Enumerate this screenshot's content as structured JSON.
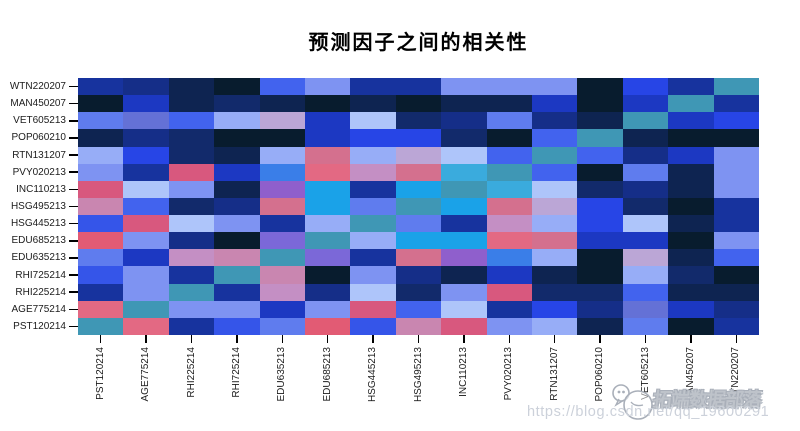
{
  "title": "预测因子之间的相关性",
  "chart_data": {
    "type": "heatmap",
    "title": "预测因子之间的相关性",
    "legend": "none",
    "grid": "off",
    "diagonal_color": "#3f97b5",
    "rows": [
      "WTN220207",
      "MAN450207",
      "VET605213",
      "POP060210",
      "RTN131207",
      "PVY020213",
      "INC110213",
      "HSG495213",
      "HSG445213",
      "EDU685213",
      "EDU635213",
      "RHI725214",
      "RHI225214",
      "AGE775214",
      "PST120214"
    ],
    "columns": [
      "PST120214",
      "AGE775214",
      "RHI225214",
      "RHI725214",
      "EDU635213",
      "EDU685213",
      "HSG445213",
      "HSG495213",
      "INC110213",
      "PVY020213",
      "RTN131207",
      "POP060210",
      "VET605213",
      "MAN450207",
      "WTN220207"
    ],
    "cell_colors": [
      [
        "#17339e",
        "#152e88",
        "#0e2451",
        "#081c2e",
        "#4263ee",
        "#7e93f2",
        "#17339e",
        "#17339e",
        "#7e93f2",
        "#7e93f2",
        "#7e93f2",
        "#081c2e",
        "#2745e6",
        "#17339e",
        "#3f97b5"
      ],
      [
        "#081c2e",
        "#1c38c2",
        "#0e2451",
        "#122a6b",
        "#0e2451",
        "#081c2e",
        "#0e2451",
        "#081c2e",
        "#0e2451",
        "#0e2451",
        "#1c38c2",
        "#081c2e",
        "#1c38c2",
        "#3f97b5",
        "#17339e"
      ],
      [
        "#5f7cee",
        "#6471d6",
        "#4263ee",
        "#97adf7",
        "#bba6d6",
        "#1c38c2",
        "#aec5fa",
        "#122a6b",
        "#152e88",
        "#5f7cee",
        "#152e88",
        "#0e2451",
        "#3f97b5",
        "#1c38c2",
        "#2745e6"
      ],
      [
        "#0e2451",
        "#152e88",
        "#122a6b",
        "#081c2e",
        "#081c2e",
        "#1c38c2",
        "#2745e6",
        "#2745e6",
        "#122a6b",
        "#081c2e",
        "#4263ee",
        "#3f97b5",
        "#0e2451",
        "#081c2e",
        "#081c2e"
      ],
      [
        "#97adf7",
        "#2745e6",
        "#122a6b",
        "#0e2451",
        "#97adf7",
        "#d4708e",
        "#97adf7",
        "#bba6d6",
        "#aec5fa",
        "#4263ee",
        "#3f97b5",
        "#4263ee",
        "#152e88",
        "#1c38c2",
        "#7e93f2"
      ],
      [
        "#7e93f2",
        "#17339e",
        "#d8587e",
        "#1c38c2",
        "#3a7ee8",
        "#e36983",
        "#c48fc4",
        "#d4708e",
        "#3aabdd",
        "#3f97b5",
        "#4263ee",
        "#081c2e",
        "#5f7cee",
        "#0e2451",
        "#7e93f2"
      ],
      [
        "#d8587e",
        "#aec5fa",
        "#7e93f2",
        "#0e2451",
        "#8f5fcc",
        "#1aa2e8",
        "#17339e",
        "#1aa2e8",
        "#3f97b5",
        "#3aabdd",
        "#aec5fa",
        "#122a6b",
        "#152e88",
        "#0e2451",
        "#7e93f2"
      ],
      [
        "#c986b0",
        "#4263ee",
        "#122a6b",
        "#152e88",
        "#d4708e",
        "#1aa2e8",
        "#5f7cee",
        "#3f97b5",
        "#1aa2e8",
        "#d4708e",
        "#bba6d6",
        "#2745e6",
        "#122a6b",
        "#081c2e",
        "#17339e"
      ],
      [
        "#3555e9",
        "#d8587e",
        "#aec5fa",
        "#7e93f2",
        "#17339e",
        "#97adf7",
        "#3f97b5",
        "#5f7cee",
        "#17339e",
        "#c48fc4",
        "#97adf7",
        "#2745e6",
        "#aec5fa",
        "#0e2451",
        "#17339e"
      ],
      [
        "#e25b74",
        "#7e93f2",
        "#152e88",
        "#081c2e",
        "#7b68d8",
        "#3f97b5",
        "#97adf7",
        "#1aa2e8",
        "#1aa2e8",
        "#e36983",
        "#d4708e",
        "#1c38c2",
        "#1c38c2",
        "#081c2e",
        "#7e93f2"
      ],
      [
        "#5f7cee",
        "#1c38c2",
        "#c48fc4",
        "#c986b0",
        "#3f97b5",
        "#7b68d8",
        "#17339e",
        "#d4708e",
        "#8f5fcc",
        "#3a7ee8",
        "#97adf7",
        "#081c2e",
        "#bba6d6",
        "#0e2451",
        "#4263ee"
      ],
      [
        "#3555e9",
        "#7e93f2",
        "#17339e",
        "#3f97b5",
        "#c986b0",
        "#081c2e",
        "#7e93f2",
        "#152e88",
        "#0e2451",
        "#1c38c2",
        "#0e2451",
        "#081c2e",
        "#97adf7",
        "#122a6b",
        "#081c2e"
      ],
      [
        "#17339e",
        "#7e93f2",
        "#3f97b5",
        "#17339e",
        "#c48fc4",
        "#152e88",
        "#aec5fa",
        "#122a6b",
        "#7e93f2",
        "#d8587e",
        "#122a6b",
        "#122a6b",
        "#4263ee",
        "#0e2451",
        "#0e2451"
      ],
      [
        "#e36983",
        "#3f97b5",
        "#7e93f2",
        "#7e93f2",
        "#1c38c2",
        "#7e93f2",
        "#d8587e",
        "#4263ee",
        "#aec5fa",
        "#17339e",
        "#2745e6",
        "#152e88",
        "#6471d6",
        "#1c38c2",
        "#152e88"
      ],
      [
        "#3f97b5",
        "#e36983",
        "#17339e",
        "#3555e9",
        "#5f7cee",
        "#e25b74",
        "#3555e9",
        "#c986b0",
        "#d8587e",
        "#7e93f2",
        "#97adf7",
        "#0e2451",
        "#5f7cee",
        "#081c2e",
        "#17339e"
      ]
    ]
  },
  "watermark": {
    "brand": "拓端数据部落",
    "url": "https://blog.csdn.net/qq_19600291"
  }
}
